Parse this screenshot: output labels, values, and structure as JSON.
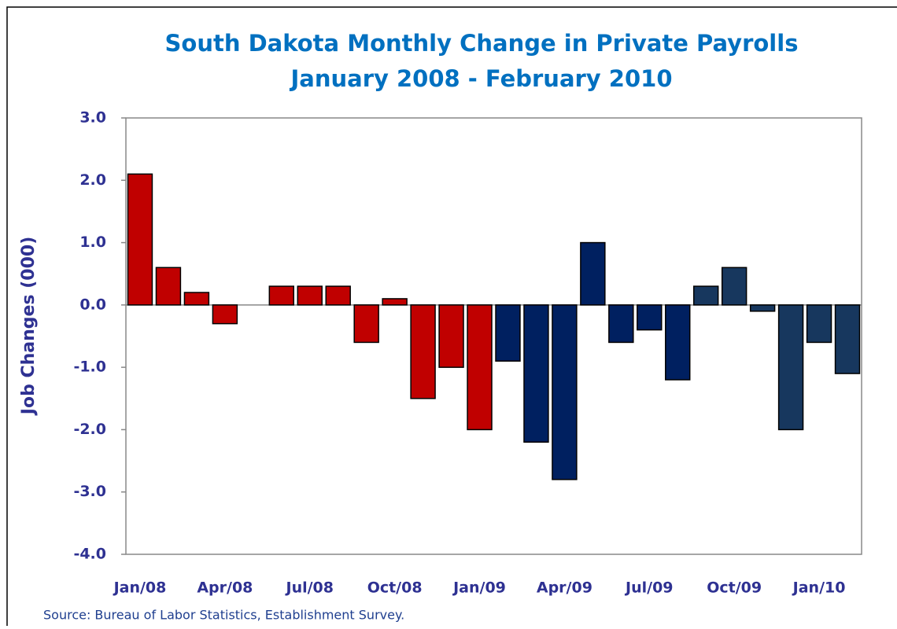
{
  "chart_data": {
    "type": "bar",
    "title": "South Dakota Monthly Change in Private Payrolls",
    "subtitle": "January 2008 - February 2010",
    "y_label": "Job Changes (000)",
    "source": "Source: Bureau of Labor Statistics, Establishment Survey.",
    "categories": [
      "Jan/08",
      null,
      null,
      "Apr/08",
      null,
      null,
      "Jul/08",
      null,
      null,
      "Oct/08",
      null,
      null,
      "Jan/09",
      null,
      null,
      "Apr/09",
      null,
      null,
      "Jul/09",
      null,
      null,
      "Oct/09",
      null,
      null,
      "Jan/10",
      null
    ],
    "values": [
      2.1,
      0.6,
      0.2,
      -0.3,
      0,
      0.3,
      0.3,
      0.3,
      -0.6,
      0.1,
      -1.5,
      -1.0,
      -2.0,
      -0.9,
      -2.2,
      -2.8,
      1.0,
      -0.6,
      -0.4,
      -1.2,
      0.3,
      0.6,
      -0.1,
      -2.0,
      -0.6,
      -1.1
    ],
    "colors": [
      "#c00000",
      "#c00000",
      "#c00000",
      "#c00000",
      "#c00000",
      "#c00000",
      "#c00000",
      "#c00000",
      "#c00000",
      "#c00000",
      "#c00000",
      "#c00000",
      "#c00000",
      "#002060",
      "#002060",
      "#002060",
      "#002060",
      "#002060",
      "#002060",
      "#002060",
      "#17375e",
      "#17375e",
      "#17375e",
      "#17375e",
      "#17375e",
      "#17375e"
    ],
    "ylim": [
      -4,
      3
    ],
    "yticks": [
      {
        "value": -4,
        "label": "-4.0"
      },
      {
        "value": -3,
        "label": "-3.0"
      },
      {
        "value": -2,
        "label": "-2.0"
      },
      {
        "value": -1,
        "label": "-1.0"
      },
      {
        "value": 0,
        "label": "0.0"
      },
      {
        "value": 1,
        "label": "1.0"
      },
      {
        "value": 2,
        "label": "2.0"
      },
      {
        "value": 3,
        "label": "3.0"
      }
    ]
  }
}
